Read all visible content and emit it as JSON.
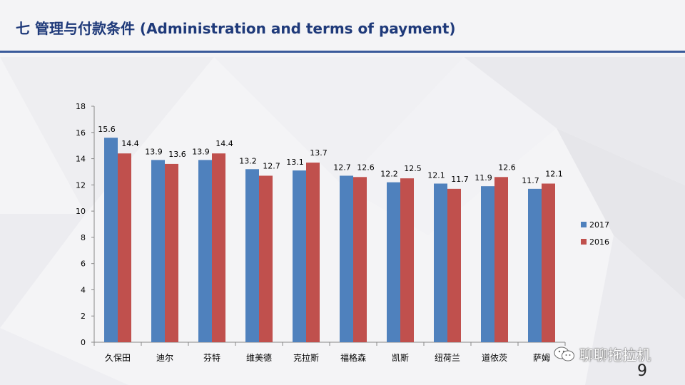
{
  "slide": {
    "title": "七  管理与付款条件   (Administration and terms of payment)",
    "page_number": "9",
    "watermark_text": "聊聊拖拉机",
    "watermark_icon": "wechat-icon"
  },
  "colors": {
    "title": "#1f3a7a",
    "rule": "#3a5a9a",
    "series_2017": "#4f81bd",
    "series_2016": "#c0504d"
  },
  "chart_data": {
    "type": "bar",
    "title": "",
    "xlabel": "",
    "ylabel": "",
    "categories": [
      "久保田",
      "迪尔",
      "芬特",
      "维美德",
      "克拉斯",
      "福格森",
      "凯斯",
      "纽荷兰",
      "道依茨",
      "萨姆"
    ],
    "series": [
      {
        "name": "2017",
        "values": [
          15.6,
          13.9,
          13.9,
          13.2,
          13.1,
          12.7,
          12.2,
          12.1,
          11.9,
          11.7
        ]
      },
      {
        "name": "2016",
        "values": [
          14.4,
          13.6,
          14.4,
          12.7,
          13.7,
          12.6,
          12.5,
          11.7,
          12.6,
          12.1
        ]
      }
    ],
    "ylim": [
      0,
      18
    ],
    "yticks": [
      0,
      2,
      4,
      6,
      8,
      10,
      12,
      14,
      16,
      18
    ],
    "grid": false,
    "legend_position": "right",
    "data_labels": true
  }
}
